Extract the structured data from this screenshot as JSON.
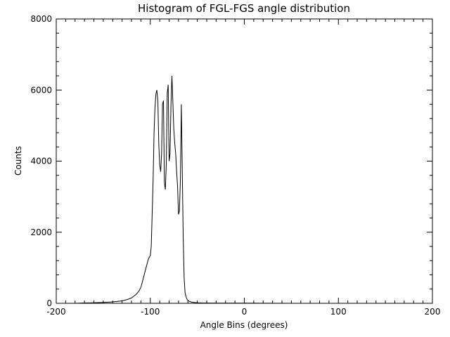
{
  "chart_data": {
    "type": "line",
    "title": "Histogram of FGL-FGS angle distribution",
    "xlabel": "Angle Bins (degrees)",
    "ylabel": "Counts",
    "xlim": [
      -200,
      200
    ],
    "ylim": [
      0,
      8000
    ],
    "x_ticks": [
      -200,
      -100,
      0,
      100,
      200
    ],
    "y_ticks": [
      0,
      2000,
      4000,
      6000,
      8000
    ],
    "grid": false,
    "legend": "none",
    "colors": {
      "line": "#000000",
      "axes": "#000000",
      "background": "#ffffff"
    },
    "series": [
      {
        "x": [
          -180,
          -170,
          -160,
          -150,
          -140,
          -130,
          -125,
          -120,
          -115,
          -112,
          -110,
          -108,
          -106,
          -104,
          -102,
          -100,
          -99,
          -98,
          -97,
          -96,
          -95,
          -94,
          -93,
          -92,
          -91,
          -90,
          -89,
          -88,
          -87,
          -86,
          -85,
          -84,
          -83,
          -82,
          -81,
          -80,
          -79,
          -78,
          -77,
          -76,
          -75,
          -74,
          -73,
          -72,
          -71,
          -70,
          -69,
          -68,
          -67,
          -66,
          -65,
          -64,
          -63,
          -62,
          -61,
          -60,
          -58,
          -56,
          -54,
          -52,
          -50,
          -45,
          -40,
          -30,
          -20,
          0,
          20,
          50,
          100,
          150,
          180
        ],
        "values": [
          0,
          10,
          15,
          25,
          40,
          70,
          100,
          150,
          250,
          350,
          450,
          650,
          850,
          1050,
          1250,
          1350,
          1600,
          2500,
          3500,
          4800,
          5500,
          5900,
          6000,
          5700,
          4500,
          3900,
          3700,
          4200,
          5600,
          5700,
          3400,
          3200,
          3900,
          5900,
          6150,
          4000,
          4200,
          5600,
          6400,
          5700,
          4900,
          4500,
          4200,
          3700,
          3300,
          2500,
          2600,
          3500,
          5600,
          3800,
          1800,
          700,
          300,
          180,
          120,
          80,
          50,
          35,
          25,
          20,
          15,
          10,
          8,
          5,
          5,
          3,
          2,
          0,
          0,
          0,
          0
        ]
      }
    ]
  }
}
